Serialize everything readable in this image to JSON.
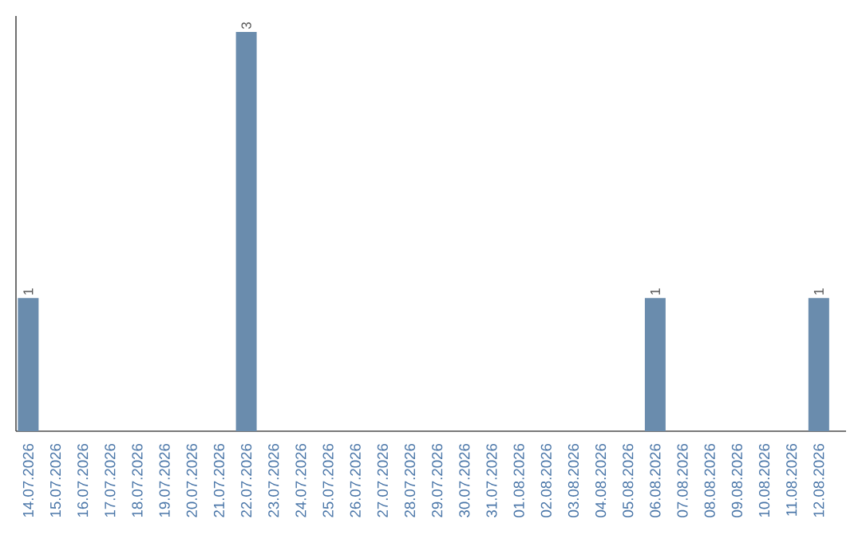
{
  "chart_data": {
    "type": "bar",
    "color": "#6a8cad",
    "categories": [
      "14.07.2026",
      "15.07.2026",
      "16.07.2026",
      "17.07.2026",
      "18.07.2026",
      "19.07.2026",
      "20.07.2026",
      "21.07.2026",
      "22.07.2026",
      "23.07.2026",
      "24.07.2026",
      "25.07.2026",
      "26.07.2026",
      "27.07.2026",
      "28.07.2026",
      "29.07.2026",
      "30.07.2026",
      "31.07.2026",
      "01.08.2026",
      "02.08.2026",
      "03.08.2026",
      "04.08.2026",
      "05.08.2026",
      "06.08.2026",
      "07.08.2026",
      "08.08.2026",
      "09.08.2026",
      "10.08.2026",
      "11.08.2026",
      "12.08.2026"
    ],
    "values": [
      1,
      0,
      0,
      0,
      0,
      0,
      0,
      0,
      3,
      0,
      0,
      0,
      0,
      0,
      0,
      0,
      0,
      0,
      0,
      0,
      0,
      0,
      0,
      1,
      0,
      0,
      0,
      0,
      0,
      1
    ],
    "value_labels": [
      "1",
      null,
      null,
      null,
      null,
      null,
      null,
      null,
      "3",
      null,
      null,
      null,
      null,
      null,
      null,
      null,
      null,
      null,
      null,
      null,
      null,
      null,
      null,
      "1",
      null,
      null,
      null,
      null,
      null,
      "1"
    ],
    "tick_labels": "x"
  }
}
